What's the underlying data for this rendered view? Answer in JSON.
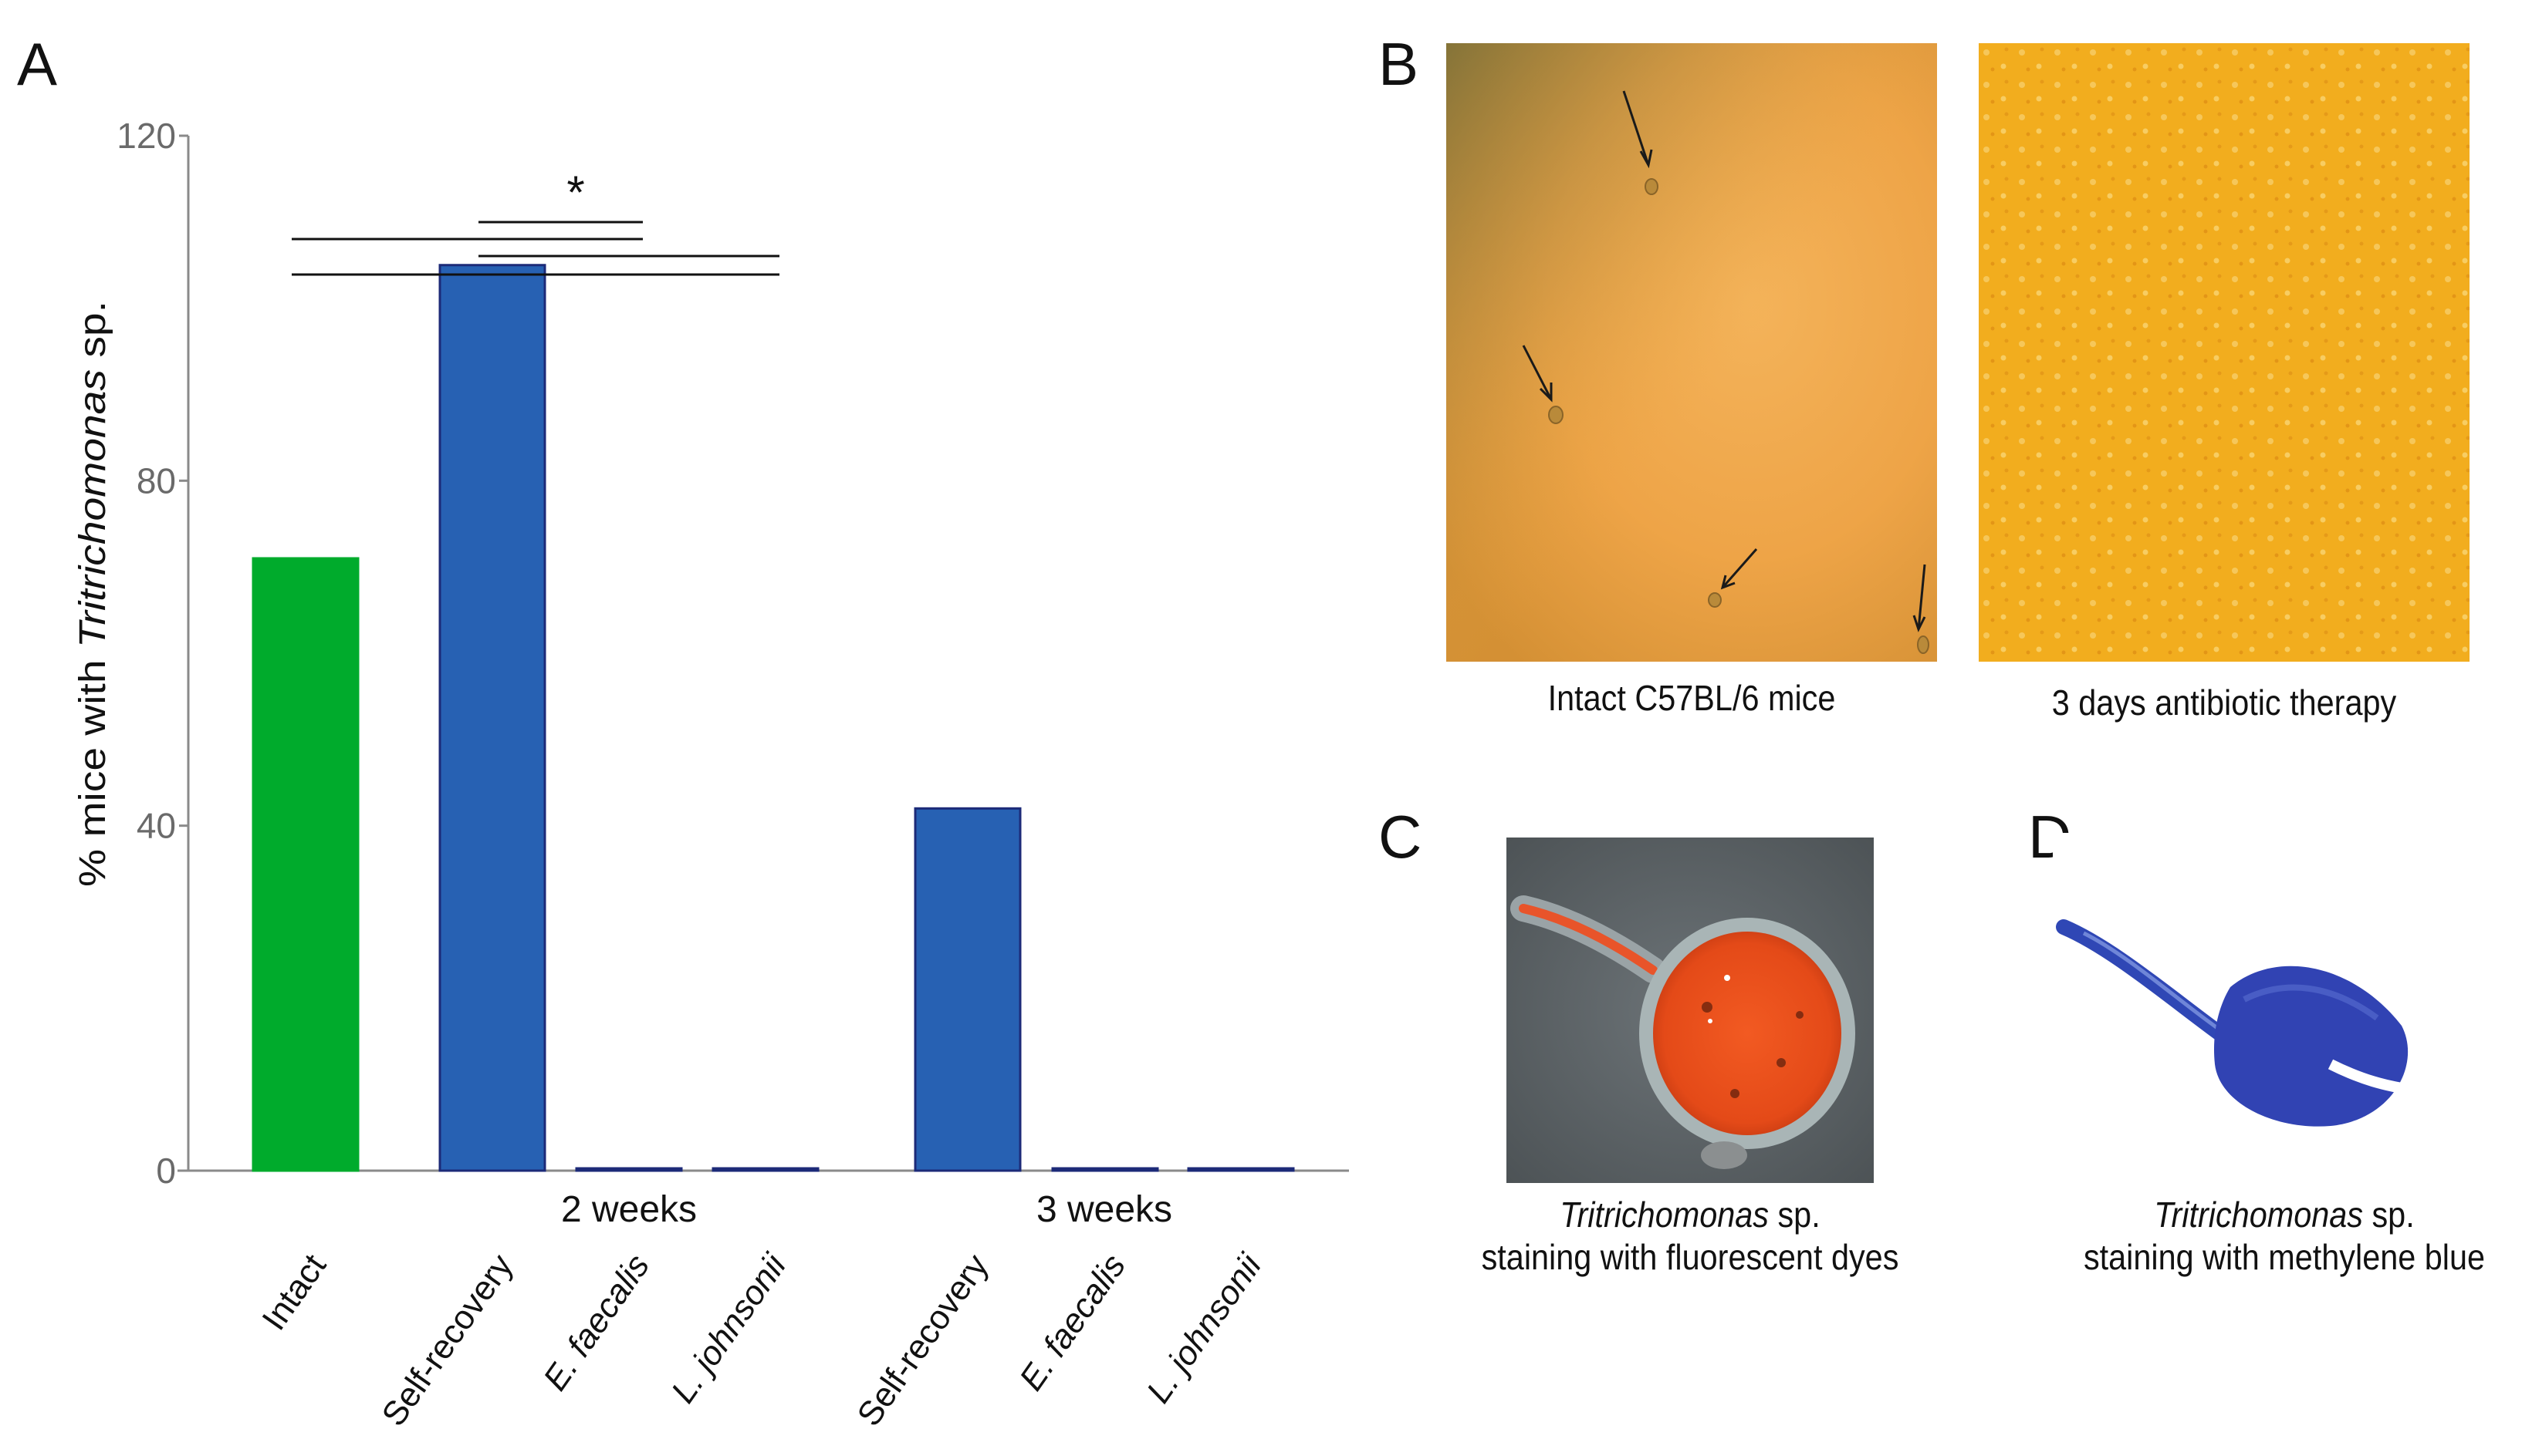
{
  "panels": {
    "a": "A",
    "b": "B",
    "c": "C",
    "d": "D"
  },
  "chart_data": {
    "type": "bar",
    "ylabel_prefix": "% mice with ",
    "ylabel_italic": "Tritrichomonas",
    "ylabel_suffix": " sp.",
    "ylim": [
      0,
      120
    ],
    "yticks": [
      0,
      40,
      80,
      120
    ],
    "categories": [
      "Intact",
      "Self-recovery",
      "E. faecalis",
      "L. johnsonii",
      "Self-recovery",
      "E. faecalis",
      "L. johnsonii"
    ],
    "italic_categories": [
      false,
      false,
      true,
      true,
      false,
      true,
      true
    ],
    "values": [
      71,
      105,
      0,
      0,
      42,
      0,
      0
    ],
    "bar_colors": [
      "#00ab2c",
      "#2761b3",
      "#2761b3",
      "#2761b3",
      "#2761b3",
      "#2761b3",
      "#2761b3"
    ],
    "groups": [
      {
        "label": "2 weeks",
        "categories": [
          1,
          2,
          3
        ]
      },
      {
        "label": "3 weeks",
        "categories": [
          4,
          5,
          6
        ]
      }
    ],
    "significance_marker": "*",
    "significance_brackets": [
      [
        1,
        2
      ],
      [
        0,
        2
      ],
      [
        1,
        3
      ],
      [
        0,
        3
      ]
    ],
    "grid": false
  },
  "micrographs": {
    "b_left_caption": "Intact C57BL/6 mice",
    "b_right_caption": "3 days antibiotic   therapy",
    "c_caption_italic": "Tritrichomonas",
    "c_caption_rest": " sp.",
    "c_caption_line2": "staining with fluorescent dyes",
    "d_caption_italic": "Tritrichomonas",
    "d_caption_rest": " sp.",
    "d_caption_line2": "staining with methylene blue",
    "colors": {
      "b_left_bg": "#e8a640",
      "b_right_bg": "#f2ad1e",
      "c_bg": "#5d6468",
      "c_cell": "#e84a1a",
      "d_stain": "#2a3ca8"
    }
  }
}
